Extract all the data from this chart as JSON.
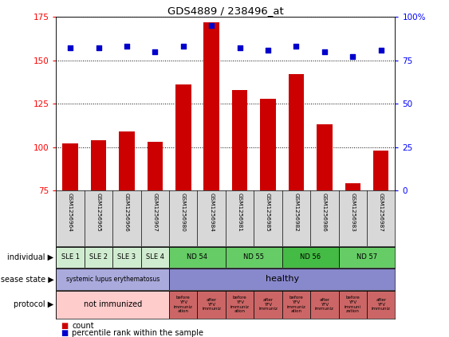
{
  "title": "GDS4889 / 238496_at",
  "samples": [
    "GSM1256964",
    "GSM1256965",
    "GSM1256966",
    "GSM1256967",
    "GSM1256980",
    "GSM1256984",
    "GSM1256981",
    "GSM1256985",
    "GSM1256982",
    "GSM1256986",
    "GSM1256983",
    "GSM1256987"
  ],
  "counts": [
    102,
    104,
    109,
    103,
    136,
    172,
    133,
    128,
    142,
    113,
    79,
    98
  ],
  "percentiles": [
    82,
    82,
    83,
    80,
    83,
    95,
    82,
    81,
    83,
    80,
    77,
    81
  ],
  "ylim_left": [
    75,
    175
  ],
  "ylim_right": [
    0,
    100
  ],
  "yticks_left": [
    75,
    100,
    125,
    150,
    175
  ],
  "yticks_right": [
    0,
    25,
    50,
    75,
    100
  ],
  "bar_color": "#cc0000",
  "dot_color": "#0000cc",
  "bg_color": "#ffffff",
  "individual_groups": [
    {
      "label": "SLE 1",
      "start": 0,
      "end": 1,
      "color": "#d0ecd0"
    },
    {
      "label": "SLE 2",
      "start": 1,
      "end": 2,
      "color": "#d0ecd0"
    },
    {
      "label": "SLE 3",
      "start": 2,
      "end": 3,
      "color": "#d0ecd0"
    },
    {
      "label": "SLE 4",
      "start": 3,
      "end": 4,
      "color": "#d0ecd0"
    },
    {
      "label": "ND 54",
      "start": 4,
      "end": 6,
      "color": "#66cc66"
    },
    {
      "label": "ND 55",
      "start": 6,
      "end": 8,
      "color": "#66cc66"
    },
    {
      "label": "ND 56",
      "start": 8,
      "end": 10,
      "color": "#44bb44"
    },
    {
      "label": "ND 57",
      "start": 10,
      "end": 12,
      "color": "#66cc66"
    }
  ],
  "disease_groups": [
    {
      "label": "systemic lupus erythematosus",
      "start": 0,
      "end": 4,
      "color": "#aaaadd"
    },
    {
      "label": "healthy",
      "start": 4,
      "end": 12,
      "color": "#8888cc"
    }
  ],
  "protocol_groups": [
    {
      "label": "not immunized",
      "start": 0,
      "end": 4,
      "color": "#ffcccc"
    },
    {
      "label": "before\nYFV\nimmuniz\nation",
      "start": 4,
      "end": 5,
      "color": "#dd7777"
    },
    {
      "label": "after\nYFV\nimmuniz",
      "start": 5,
      "end": 6,
      "color": "#dd7777"
    },
    {
      "label": "before\nYFV\nimmuniz\nation",
      "start": 6,
      "end": 7,
      "color": "#dd7777"
    },
    {
      "label": "after\nYFV\nimmuniz",
      "start": 7,
      "end": 8,
      "color": "#dd7777"
    },
    {
      "label": "before\nYFV\nimmuniz\nation",
      "start": 8,
      "end": 9,
      "color": "#dd7777"
    },
    {
      "label": "after\nYFV\nimmuniz",
      "start": 9,
      "end": 10,
      "color": "#dd7777"
    },
    {
      "label": "before\nYFV\nimmuni\nzation",
      "start": 10,
      "end": 11,
      "color": "#dd7777"
    },
    {
      "label": "after\nYFV\nimmuniz",
      "start": 11,
      "end": 12,
      "color": "#dd7777"
    }
  ],
  "row_labels": [
    "individual",
    "disease state",
    "protocol"
  ],
  "legend_items": [
    {
      "color": "#cc0000",
      "label": "count"
    },
    {
      "color": "#0000cc",
      "label": "percentile rank within the sample"
    }
  ]
}
